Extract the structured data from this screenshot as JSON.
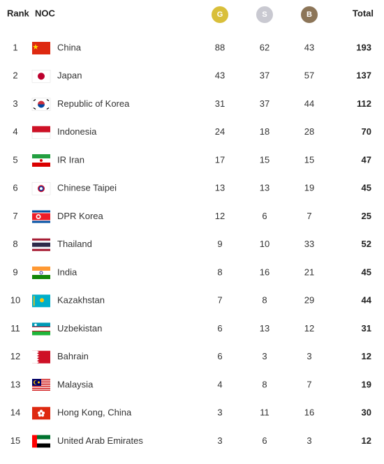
{
  "header": {
    "rank": "Rank",
    "noc": "NOC",
    "gold": "G",
    "silver": "S",
    "bronze": "B",
    "total": "Total"
  },
  "rows": [
    {
      "rank": "1",
      "noc": "China",
      "gold": "88",
      "silver": "62",
      "bronze": "43",
      "total": "193"
    },
    {
      "rank": "2",
      "noc": "Japan",
      "gold": "43",
      "silver": "37",
      "bronze": "57",
      "total": "137"
    },
    {
      "rank": "3",
      "noc": "Republic of Korea",
      "gold": "31",
      "silver": "37",
      "bronze": "44",
      "total": "112"
    },
    {
      "rank": "4",
      "noc": "Indonesia",
      "gold": "24",
      "silver": "18",
      "bronze": "28",
      "total": "70"
    },
    {
      "rank": "5",
      "noc": "IR Iran",
      "gold": "17",
      "silver": "15",
      "bronze": "15",
      "total": "47"
    },
    {
      "rank": "6",
      "noc": "Chinese Taipei",
      "gold": "13",
      "silver": "13",
      "bronze": "19",
      "total": "45"
    },
    {
      "rank": "7",
      "noc": "DPR Korea",
      "gold": "12",
      "silver": "6",
      "bronze": "7",
      "total": "25"
    },
    {
      "rank": "8",
      "noc": "Thailand",
      "gold": "9",
      "silver": "10",
      "bronze": "33",
      "total": "52"
    },
    {
      "rank": "9",
      "noc": "India",
      "gold": "8",
      "silver": "16",
      "bronze": "21",
      "total": "45"
    },
    {
      "rank": "10",
      "noc": "Kazakhstan",
      "gold": "7",
      "silver": "8",
      "bronze": "29",
      "total": "44"
    },
    {
      "rank": "11",
      "noc": "Uzbekistan",
      "gold": "6",
      "silver": "13",
      "bronze": "12",
      "total": "31"
    },
    {
      "rank": "12",
      "noc": "Bahrain",
      "gold": "6",
      "silver": "3",
      "bronze": "3",
      "total": "12"
    },
    {
      "rank": "13",
      "noc": "Malaysia",
      "gold": "4",
      "silver": "8",
      "bronze": "7",
      "total": "19"
    },
    {
      "rank": "14",
      "noc": "Hong Kong, China",
      "gold": "3",
      "silver": "11",
      "bronze": "16",
      "total": "30"
    },
    {
      "rank": "15",
      "noc": "United Arab Emirates",
      "gold": "3",
      "silver": "6",
      "bronze": "3",
      "total": "12"
    }
  ]
}
